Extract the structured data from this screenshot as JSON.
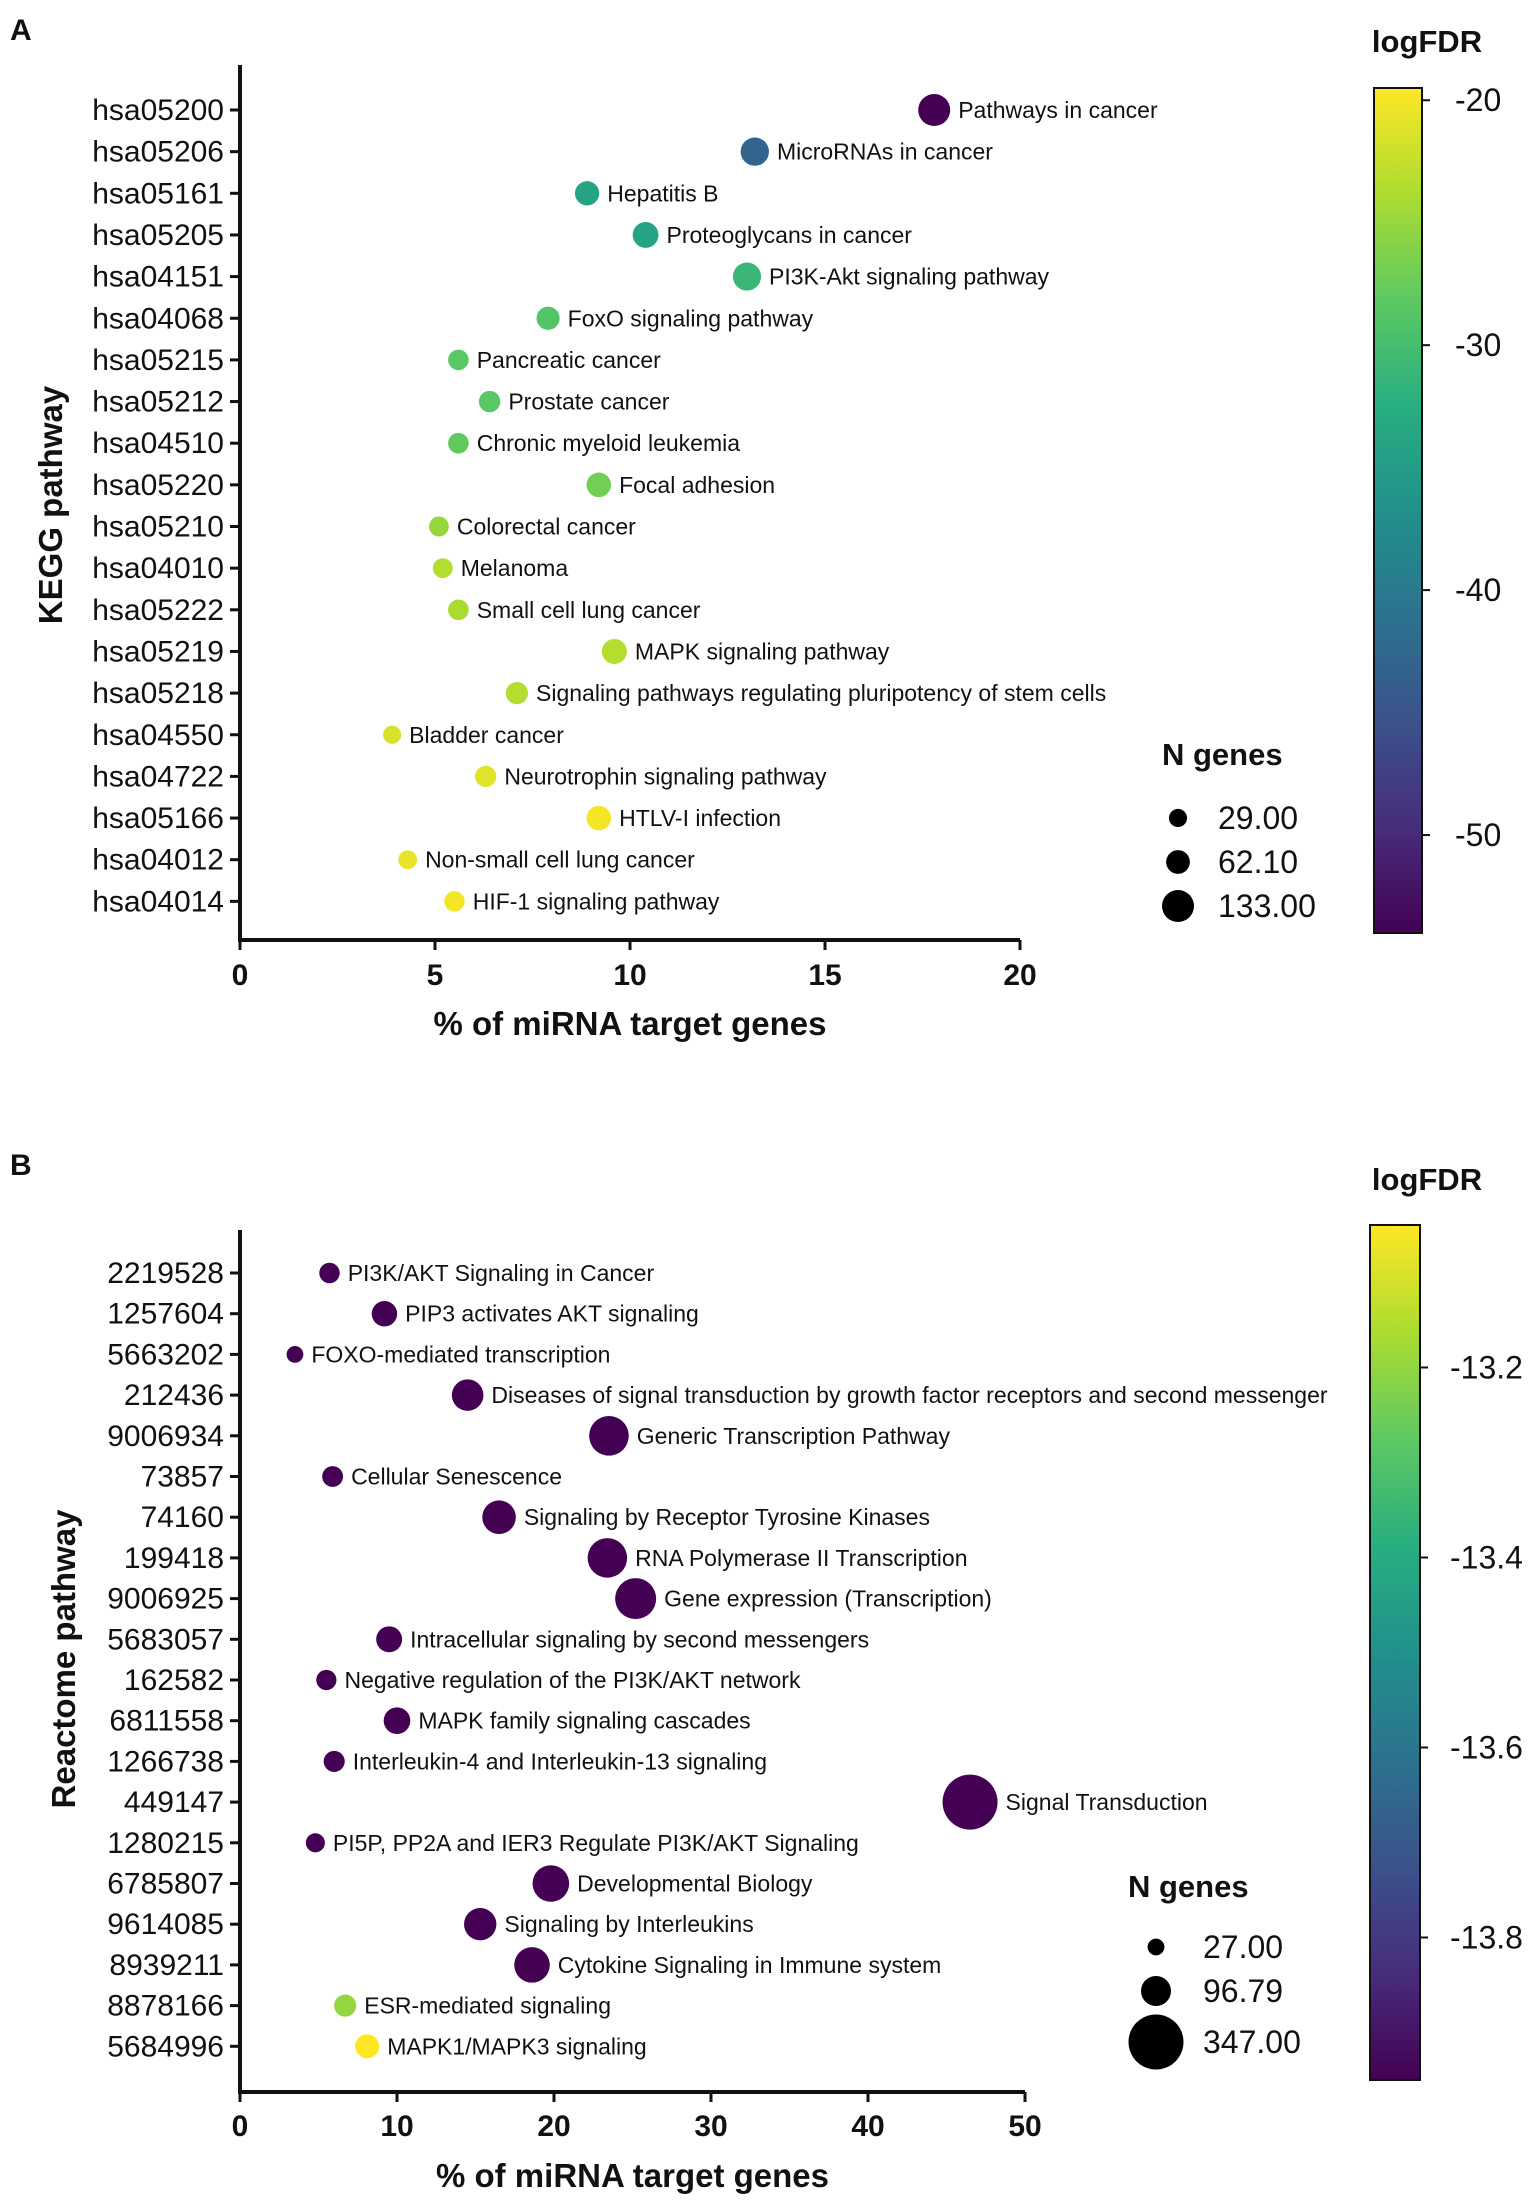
{
  "chart_data": [
    {
      "panel": "A",
      "type": "scatter",
      "xlabel": "% of miRNA target genes",
      "ylabel": "KEGG pathway",
      "xlim": [
        0,
        20
      ],
      "xticks": [
        "0",
        "5",
        "10",
        "15",
        "20"
      ],
      "colorbar": {
        "title": "logFDR",
        "range": [
          -54,
          -19.5
        ],
        "ticks": [
          "-20",
          "-30",
          "-40",
          "-50"
        ],
        "tick_values": [
          -20,
          -30,
          -40,
          -50
        ],
        "colormap": "viridis"
      },
      "size_legend": {
        "title": "N genes",
        "labels": [
          "29.00",
          "62.10",
          "133.00"
        ],
        "values": [
          29,
          62.1,
          133
        ]
      },
      "points": [
        {
          "id": "hsa05200",
          "label": "Pathways in cancer",
          "x": 17.8,
          "n": 133,
          "logFDR": -54
        },
        {
          "id": "hsa05206",
          "label": "MicroRNAs in cancer",
          "x": 13.2,
          "n": 98,
          "logFDR": -43
        },
        {
          "id": "hsa05161",
          "label": "Hepatitis B",
          "x": 8.9,
          "n": 66,
          "logFDR": -34
        },
        {
          "id": "hsa05205",
          "label": "Proteoglycans in cancer",
          "x": 10.4,
          "n": 77,
          "logFDR": -34
        },
        {
          "id": "hsa04151",
          "label": "PI3K-Akt signaling pathway",
          "x": 13.0,
          "n": 96,
          "logFDR": -31
        },
        {
          "id": "hsa04068",
          "label": "FoxO signaling pathway",
          "x": 7.9,
          "n": 58,
          "logFDR": -29
        },
        {
          "id": "hsa05215",
          "label": "Pancreatic cancer",
          "x": 5.6,
          "n": 42,
          "logFDR": -28.5
        },
        {
          "id": "hsa05212",
          "label": "Prostate cancer",
          "x": 6.4,
          "n": 47,
          "logFDR": -28.5
        },
        {
          "id": "hsa04510",
          "label": "Chronic myeloid leukemia",
          "x": 5.6,
          "n": 42,
          "logFDR": -28
        },
        {
          "id": "hsa05220",
          "label": "Focal adhesion",
          "x": 9.2,
          "n": 68,
          "logFDR": -27
        },
        {
          "id": "hsa05210",
          "label": "Colorectal cancer",
          "x": 5.1,
          "n": 38,
          "logFDR": -25
        },
        {
          "id": "hsa04010",
          "label": "Melanoma",
          "x": 5.2,
          "n": 38,
          "logFDR": -23.5
        },
        {
          "id": "hsa05222",
          "label": "Small cell lung cancer",
          "x": 5.6,
          "n": 42,
          "logFDR": -24
        },
        {
          "id": "hsa05219",
          "label": "MAPK signaling pathway",
          "x": 9.6,
          "n": 71,
          "logFDR": -23.5
        },
        {
          "id": "hsa05218",
          "label": "Signaling pathways regulating pluripotency of stem cells",
          "x": 7.1,
          "n": 52,
          "logFDR": -23.5
        },
        {
          "id": "hsa04550",
          "label": "Bladder cancer",
          "x": 3.9,
          "n": 29,
          "logFDR": -21.5
        },
        {
          "id": "hsa04722",
          "label": "Neurotrophin signaling pathway",
          "x": 6.3,
          "n": 46,
          "logFDR": -21
        },
        {
          "id": "hsa05166",
          "label": "HTLV-I infection",
          "x": 9.2,
          "n": 68,
          "logFDR": -20
        },
        {
          "id": "hsa04012",
          "label": "Non-small cell lung cancer",
          "x": 4.3,
          "n": 32,
          "logFDR": -20.5
        },
        {
          "id": "hsa04014",
          "label": "HIF-1 signaling pathway",
          "x": 5.5,
          "n": 41,
          "logFDR": -20
        }
      ]
    },
    {
      "panel": "B",
      "type": "scatter",
      "xlabel": "% of miRNA target genes",
      "ylabel": "Reactome pathway",
      "xlim": [
        0,
        50
      ],
      "xticks": [
        "0",
        "10",
        "20",
        "30",
        "40",
        "50"
      ],
      "colorbar": {
        "title": "logFDR",
        "range": [
          -13.95,
          -13.05
        ],
        "ticks": [
          "-13.2",
          "-13.4",
          "-13.6",
          "-13.8"
        ],
        "tick_values": [
          -13.2,
          -13.4,
          -13.6,
          -13.8
        ],
        "colormap": "viridis"
      },
      "size_legend": {
        "title": "N genes",
        "labels": [
          "27.00",
          "96.79",
          "347.00"
        ],
        "values": [
          27,
          96.79,
          347
        ]
      },
      "points": [
        {
          "id": "2219528",
          "label": "PI3K/AKT Signaling in Cancer",
          "x": 5.7,
          "n": 42,
          "logFDR": -13.95
        },
        {
          "id": "1257604",
          "label": "PIP3 activates AKT signaling",
          "x": 9.2,
          "n": 68,
          "logFDR": -13.95
        },
        {
          "id": "5663202",
          "label": "FOXO-mediated transcription",
          "x": 3.5,
          "n": 27,
          "logFDR": -13.95
        },
        {
          "id": "212436",
          "label": "Diseases of signal transduction by growth factor receptors and second messenger",
          "x": 14.5,
          "n": 108,
          "logFDR": -13.95
        },
        {
          "id": "9006934",
          "label": "Generic Transcription Pathway",
          "x": 23.5,
          "n": 175,
          "logFDR": -13.95
        },
        {
          "id": "73857",
          "label": "Cellular Senescence",
          "x": 5.9,
          "n": 44,
          "logFDR": -13.95
        },
        {
          "id": "74160",
          "label": "Signaling by Receptor Tyrosine Kinases",
          "x": 16.5,
          "n": 123,
          "logFDR": -13.95
        },
        {
          "id": "199418",
          "label": "RNA Polymerase II Transcription",
          "x": 23.4,
          "n": 174,
          "logFDR": -13.95
        },
        {
          "id": "9006925",
          "label": "Gene expression (Transcription)",
          "x": 25.2,
          "n": 188,
          "logFDR": -13.95
        },
        {
          "id": "5683057",
          "label": "Intracellular signaling by second messengers",
          "x": 9.5,
          "n": 71,
          "logFDR": -13.95
        },
        {
          "id": "162582",
          "label": "Negative regulation of the PI3K/AKT network",
          "x": 5.5,
          "n": 41,
          "logFDR": -13.95
        },
        {
          "id": "6811558",
          "label": "MAPK family signaling cascades",
          "x": 10.0,
          "n": 75,
          "logFDR": -13.95
        },
        {
          "id": "1266738",
          "label": "Interleukin-4 and Interleukin-13 signaling",
          "x": 6.0,
          "n": 45,
          "logFDR": -13.95
        },
        {
          "id": "449147",
          "label": "Signal Transduction",
          "x": 46.5,
          "n": 347,
          "logFDR": -13.95
        },
        {
          "id": "1280215",
          "label": "PI5P, PP2A and IER3 Regulate PI3K/AKT Signaling",
          "x": 4.8,
          "n": 36,
          "logFDR": -13.95
        },
        {
          "id": "6785807",
          "label": "Developmental Biology",
          "x": 19.8,
          "n": 148,
          "logFDR": -13.95
        },
        {
          "id": "9614085",
          "label": "Signaling by Interleukins",
          "x": 15.3,
          "n": 114,
          "logFDR": -13.95
        },
        {
          "id": "8939211",
          "label": "Cytokine Signaling in Immune system",
          "x": 18.6,
          "n": 139,
          "logFDR": -13.95
        },
        {
          "id": "8878166",
          "label": "ESR-mediated signaling",
          "x": 6.7,
          "n": 50,
          "logFDR": -13.2
        },
        {
          "id": "5684996",
          "label": "MAPK1/MAPK3 signaling",
          "x": 8.1,
          "n": 60,
          "logFDR": -13.05
        }
      ]
    }
  ]
}
